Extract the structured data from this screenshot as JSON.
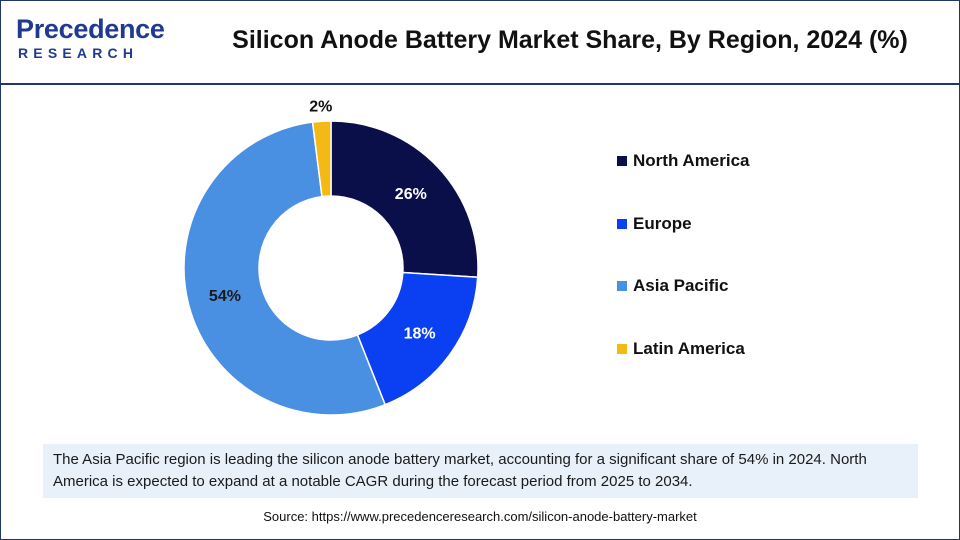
{
  "brand": {
    "logo_main": "Precedence",
    "logo_sub": "RESEARCH"
  },
  "chart_data": {
    "type": "pie",
    "style": "donut",
    "title": "Silicon Anode Battery Market Share, By Region, 2024 (%)",
    "categories": [
      "North America",
      "Europe",
      "Asia Pacific",
      "Latin America"
    ],
    "values": [
      26,
      18,
      54,
      2
    ],
    "data_labels": [
      "26%",
      "18%",
      "54%",
      "2%"
    ],
    "colors": [
      "#0a0f4a",
      "#0b3ff2",
      "#4a90e2",
      "#f5b915"
    ],
    "legend_position": "right",
    "start_angle_deg": 0,
    "direction": "clockwise"
  },
  "note": {
    "text": "The Asia Pacific region is leading the silicon anode battery market, accounting for a significant share of 54% in 2024. North America is expected to expand at a notable CAGR during the forecast period from 2025 to 2034."
  },
  "source": {
    "text": "Source: https://www.precedenceresearch.com/silicon-anode-battery-market"
  }
}
